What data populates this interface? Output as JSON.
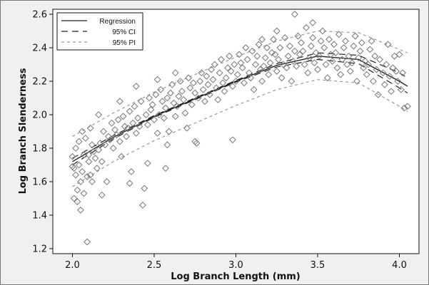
{
  "chart_data": {
    "type": "scatter",
    "xlabel": "Log Branch Length (mm)",
    "ylabel": "Log Branch Slenderness",
    "xlim": [
      1.88,
      4.12
    ],
    "ylim": [
      1.17,
      2.63
    ],
    "xticks": [
      2.0,
      2.5,
      3.0,
      3.5,
      4.0
    ],
    "xtick_labels": [
      "2.0",
      "2.5",
      "3.0",
      "3.5",
      "4.0"
    ],
    "yticks": [
      1.2,
      1.4,
      1.6,
      1.8,
      2.0,
      2.2,
      2.4,
      2.6
    ],
    "ytick_labels": [
      "1.2",
      "1.4",
      "1.6",
      "1.8",
      "2.0",
      "2.2",
      "2.4",
      "2.6"
    ],
    "grid": false,
    "legend_position": "top-left",
    "legend": {
      "regression": "Regression",
      "ci": "95% CI",
      "pi": "95% PI"
    },
    "series": [
      {
        "name": "Regression",
        "style": "solid",
        "color": "#222222",
        "x": [
          2.0,
          2.25,
          2.5,
          2.75,
          3.0,
          3.25,
          3.5,
          3.75,
          4.0,
          4.05
        ],
        "y": [
          1.72,
          1.865,
          1.99,
          2.095,
          2.2,
          2.295,
          2.35,
          2.33,
          2.2,
          2.17
        ]
      },
      {
        "name": "95% CI",
        "style": "long-dash",
        "color": "#222222",
        "upper": {
          "x": [
            2.0,
            2.25,
            2.5,
            2.75,
            3.0,
            3.25,
            3.5,
            3.75,
            4.0,
            4.05
          ],
          "y": [
            1.74,
            1.875,
            1.995,
            2.1,
            2.205,
            2.305,
            2.37,
            2.355,
            2.25,
            2.22
          ]
        },
        "lower": {
          "x": [
            2.0,
            2.25,
            2.5,
            2.75,
            3.0,
            3.25,
            3.5,
            3.75,
            4.0,
            4.05
          ],
          "y": [
            1.7,
            1.855,
            1.985,
            2.09,
            2.195,
            2.285,
            2.33,
            2.305,
            2.16,
            2.13
          ]
        }
      },
      {
        "name": "95% PI",
        "style": "dashed",
        "color": "#999999",
        "upper": {
          "x": [
            2.0,
            2.25,
            2.5,
            2.75,
            3.0,
            3.25,
            3.5,
            3.75,
            4.0,
            4.05
          ],
          "y": [
            1.87,
            2.01,
            2.135,
            2.24,
            2.345,
            2.44,
            2.5,
            2.49,
            2.39,
            2.37
          ]
        },
        "lower": {
          "x": [
            2.0,
            2.25,
            2.5,
            2.75,
            3.0,
            3.25,
            3.5,
            3.75,
            4.0,
            4.05
          ],
          "y": [
            1.57,
            1.72,
            1.845,
            1.95,
            2.055,
            2.15,
            2.21,
            2.19,
            2.05,
            2.02
          ]
        }
      }
    ],
    "scatter_points": [
      [
        2.1,
        1.72
      ],
      [
        2.04,
        1.84
      ],
      [
        2.0,
        1.75
      ],
      [
        2.12,
        1.82
      ],
      [
        2.0,
        1.69
      ],
      [
        2.07,
        1.76
      ],
      [
        2.01,
        1.68
      ],
      [
        2.09,
        1.63
      ],
      [
        2.1,
        1.76
      ],
      [
        2.01,
        1.5
      ],
      [
        2.05,
        1.43
      ],
      [
        2.03,
        1.48
      ],
      [
        2.07,
        1.53
      ],
      [
        2.05,
        1.6
      ],
      [
        2.09,
        1.24
      ],
      [
        2.06,
        1.66
      ],
      [
        2.02,
        1.8
      ],
      [
        2.03,
        1.55
      ],
      [
        2.08,
        1.86
      ],
      [
        2.04,
        1.7
      ],
      [
        2.11,
        1.64
      ],
      [
        2.13,
        1.78
      ],
      [
        2.15,
        1.68
      ],
      [
        2.14,
        1.74
      ],
      [
        2.17,
        1.83
      ],
      [
        2.16,
        1.79
      ],
      [
        2.19,
        1.9
      ],
      [
        2.2,
        1.82
      ],
      [
        2.22,
        1.87
      ],
      [
        2.18,
        1.72
      ],
      [
        2.21,
        1.6
      ],
      [
        2.24,
        1.95
      ],
      [
        2.23,
        1.85
      ],
      [
        2.26,
        1.91
      ],
      [
        2.25,
        1.8
      ],
      [
        2.28,
        1.97
      ],
      [
        2.27,
        1.88
      ],
      [
        2.29,
        1.84
      ],
      [
        2.3,
        1.75
      ],
      [
        2.32,
        1.93
      ],
      [
        2.31,
        1.99
      ],
      [
        2.33,
        1.87
      ],
      [
        2.35,
        2.02
      ],
      [
        2.34,
        1.92
      ],
      [
        2.36,
        1.66
      ],
      [
        2.38,
        2.05
      ],
      [
        2.37,
        1.95
      ],
      [
        2.39,
        1.89
      ],
      [
        2.4,
        1.98
      ],
      [
        2.42,
        2.08
      ],
      [
        2.41,
        1.93
      ],
      [
        2.43,
        1.46
      ],
      [
        2.44,
        1.56
      ],
      [
        2.45,
        2.0
      ],
      [
        2.47,
        2.1
      ],
      [
        2.46,
        1.94
      ],
      [
        2.48,
        2.03
      ],
      [
        2.5,
        1.97
      ],
      [
        2.49,
        2.06
      ],
      [
        2.51,
        2.12
      ],
      [
        2.53,
        2.0
      ],
      [
        2.52,
        1.89
      ],
      [
        2.55,
        2.08
      ],
      [
        2.54,
        2.15
      ],
      [
        2.56,
        1.98
      ],
      [
        2.58,
        2.1
      ],
      [
        2.57,
        2.04
      ],
      [
        2.59,
        1.9
      ],
      [
        2.6,
        2.13
      ],
      [
        2.62,
        2.07
      ],
      [
        2.61,
        2.18
      ],
      [
        2.63,
        1.99
      ],
      [
        2.65,
        2.11
      ],
      [
        2.64,
        2.05
      ],
      [
        2.66,
        2.2
      ],
      [
        2.68,
        2.09
      ],
      [
        2.67,
        2.14
      ],
      [
        2.69,
        2.01
      ],
      [
        2.7,
        1.92
      ],
      [
        2.72,
        2.16
      ],
      [
        2.71,
        2.22
      ],
      [
        2.73,
        2.06
      ],
      [
        2.75,
        2.13
      ],
      [
        2.74,
        2.19
      ],
      [
        2.76,
        1.83
      ],
      [
        2.78,
        2.2
      ],
      [
        2.77,
        2.1
      ],
      [
        2.79,
        2.25
      ],
      [
        2.8,
        2.15
      ],
      [
        2.82,
        2.23
      ],
      [
        2.81,
        2.08
      ],
      [
        2.83,
        2.18
      ],
      [
        2.85,
        2.27
      ],
      [
        2.84,
        2.12
      ],
      [
        2.86,
        2.21
      ],
      [
        2.88,
        2.16
      ],
      [
        2.87,
        2.3
      ],
      [
        2.89,
        2.09
      ],
      [
        2.9,
        2.25
      ],
      [
        2.92,
        2.19
      ],
      [
        2.91,
        2.33
      ],
      [
        2.93,
        2.14
      ],
      [
        2.95,
        2.28
      ],
      [
        2.94,
        2.22
      ],
      [
        2.96,
        2.35
      ],
      [
        2.98,
        2.17
      ],
      [
        2.97,
        2.26
      ],
      [
        2.99,
        2.3
      ],
      [
        3.0,
        2.2
      ],
      [
        3.02,
        2.36
      ],
      [
        3.01,
        2.24
      ],
      [
        3.03,
        2.31
      ],
      [
        3.05,
        2.19
      ],
      [
        3.04,
        2.28
      ],
      [
        3.06,
        2.4
      ],
      [
        3.08,
        2.25
      ],
      [
        3.07,
        2.33
      ],
      [
        3.09,
        2.22
      ],
      [
        3.1,
        2.38
      ],
      [
        3.12,
        2.3
      ],
      [
        3.11,
        2.15
      ],
      [
        3.13,
        2.35
      ],
      [
        3.15,
        2.27
      ],
      [
        3.14,
        2.42
      ],
      [
        3.16,
        2.2
      ],
      [
        3.18,
        2.34
      ],
      [
        3.17,
        2.29
      ],
      [
        3.19,
        2.4
      ],
      [
        3.2,
        2.24
      ],
      [
        3.22,
        2.37
      ],
      [
        3.21,
        2.31
      ],
      [
        3.23,
        2.45
      ],
      [
        3.25,
        2.26
      ],
      [
        3.24,
        2.36
      ],
      [
        3.26,
        2.33
      ],
      [
        3.28,
        2.22
      ],
      [
        3.27,
        2.4
      ],
      [
        3.29,
        2.3
      ],
      [
        3.3,
        2.46
      ],
      [
        3.32,
        2.35
      ],
      [
        3.31,
        2.28
      ],
      [
        3.33,
        2.41
      ],
      [
        3.35,
        2.32
      ],
      [
        3.34,
        2.2
      ],
      [
        3.36,
        2.38
      ],
      [
        3.38,
        2.47
      ],
      [
        3.37,
        2.29
      ],
      [
        3.39,
        2.36
      ],
      [
        3.4,
        2.43
      ],
      [
        3.42,
        2.3
      ],
      [
        3.41,
        2.38
      ],
      [
        3.43,
        2.52
      ],
      [
        3.45,
        2.34
      ],
      [
        3.44,
        2.25
      ],
      [
        3.46,
        2.41
      ],
      [
        3.48,
        2.31
      ],
      [
        3.47,
        2.46
      ],
      [
        3.49,
        2.37
      ],
      [
        3.5,
        2.27
      ],
      [
        3.52,
        2.44
      ],
      [
        3.51,
        2.35
      ],
      [
        3.53,
        2.5
      ],
      [
        3.55,
        2.3
      ],
      [
        3.54,
        2.4
      ],
      [
        3.56,
        2.22
      ],
      [
        3.58,
        2.36
      ],
      [
        3.57,
        2.45
      ],
      [
        3.59,
        2.32
      ],
      [
        3.6,
        2.42
      ],
      [
        3.62,
        2.28
      ],
      [
        3.61,
        2.37
      ],
      [
        3.63,
        2.48
      ],
      [
        3.65,
        2.33
      ],
      [
        3.64,
        2.24
      ],
      [
        3.66,
        2.4
      ],
      [
        3.68,
        2.3
      ],
      [
        3.67,
        2.44
      ],
      [
        3.69,
        2.35
      ],
      [
        3.7,
        2.26
      ],
      [
        3.72,
        2.41
      ],
      [
        3.71,
        2.31
      ],
      [
        3.73,
        2.47
      ],
      [
        3.75,
        2.34
      ],
      [
        3.74,
        2.2
      ],
      [
        3.76,
        2.38
      ],
      [
        3.78,
        2.28
      ],
      [
        3.77,
        2.43
      ],
      [
        3.79,
        2.32
      ],
      [
        3.8,
        2.24
      ],
      [
        3.82,
        2.39
      ],
      [
        3.81,
        2.3
      ],
      [
        3.83,
        2.44
      ],
      [
        3.85,
        2.35
      ],
      [
        3.84,
        2.2
      ],
      [
        3.86,
        2.27
      ],
      [
        3.88,
        2.33
      ],
      [
        3.87,
        2.12
      ],
      [
        3.9,
        2.25
      ],
      [
        3.92,
        2.3
      ],
      [
        3.91,
        2.18
      ],
      [
        3.94,
        2.23
      ],
      [
        3.95,
        2.14
      ],
      [
        3.97,
        2.35
      ],
      [
        3.96,
        2.28
      ],
      [
        3.99,
        2.2
      ],
      [
        4.0,
        2.36
      ],
      [
        4.02,
        2.25
      ],
      [
        4.01,
        2.15
      ],
      [
        4.03,
        2.04
      ],
      [
        4.05,
        2.05
      ],
      [
        3.93,
        2.42
      ],
      [
        3.98,
        2.26
      ],
      [
        3.36,
        2.6
      ],
      [
        3.47,
        2.55
      ],
      [
        3.25,
        2.5
      ],
      [
        3.16,
        2.45
      ],
      [
        2.98,
        1.85
      ],
      [
        2.75,
        1.84
      ],
      [
        2.58,
        1.82
      ],
      [
        2.46,
        1.71
      ],
      [
        2.35,
        1.59
      ],
      [
        2.18,
        1.52
      ],
      [
        2.12,
        1.6
      ],
      [
        2.57,
        1.68
      ],
      [
        2.63,
        2.25
      ],
      [
        2.52,
        2.21
      ],
      [
        2.39,
        2.17
      ],
      [
        2.29,
        2.08
      ],
      [
        2.16,
        2.0
      ],
      [
        2.11,
        1.92
      ],
      [
        2.06,
        1.9
      ],
      [
        2.02,
        1.64
      ]
    ]
  },
  "colors": {
    "background": "#f0f0f0",
    "plot_background": "#ffffff",
    "axis": "#111111",
    "marker": "#777777",
    "regression": "#222222",
    "ci": "#222222",
    "pi": "#999999"
  }
}
